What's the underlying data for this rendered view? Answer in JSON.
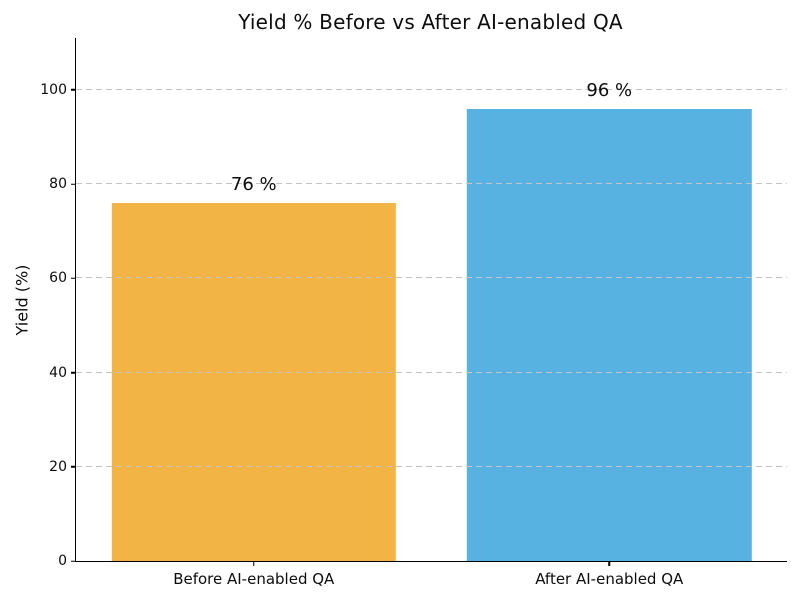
{
  "chart_data": {
    "type": "bar",
    "title": "Yield % Before vs After AI-enabled QA",
    "xlabel": "",
    "ylabel": "Yield (%)",
    "categories": [
      "Before AI-enabled QA",
      "After AI-enabled QA"
    ],
    "values": [
      76,
      96
    ],
    "value_labels": [
      "76 %",
      "96 %"
    ],
    "bar_colors": [
      "#F2B445",
      "#57B1E1"
    ],
    "yticks": [
      0,
      20,
      40,
      60,
      80,
      100
    ],
    "ylim": [
      0,
      111
    ],
    "bar_width_fraction": 0.8,
    "grid": "horizontal-dashed",
    "grid_color": "#c4c4c4",
    "legend": "none",
    "spines": [
      "left",
      "bottom"
    ]
  }
}
